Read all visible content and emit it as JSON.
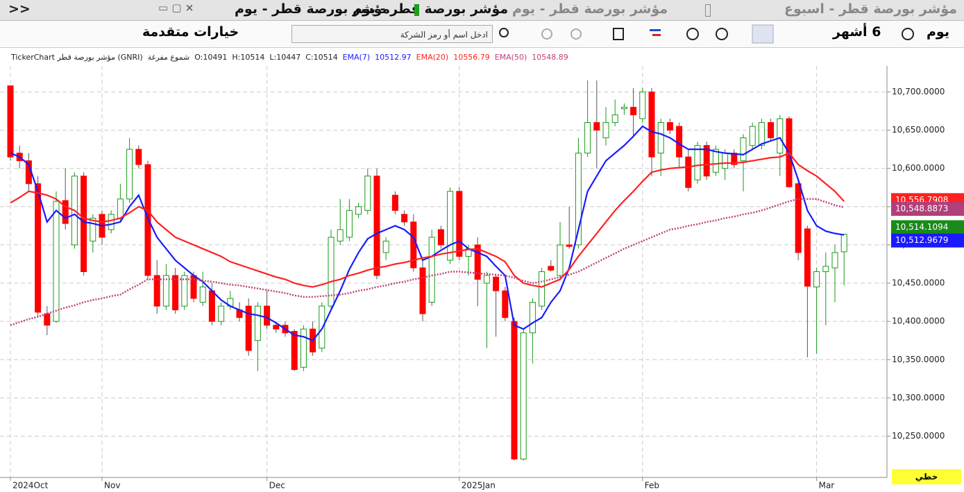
{
  "tabs": {
    "back": "<<",
    "items": [
      "مؤشر بورصة قطر - يوم",
      "مؤشر بورصة قطر - يوم",
      "مؤشر بورصة قطر - يوم",
      "مؤشر بورصة قطر - اسبوع"
    ]
  },
  "toolbar": {
    "advanced": "خيارات متقدمة",
    "search_placeholder": "ادخل اسم أو رمز الشركة",
    "period": "6 أشهر",
    "interval": "يوم"
  },
  "info": {
    "source": "TickerChart مؤشر بورصة قطر (GNRI)",
    "style": "شموع مفرغة",
    "o": "O:10491",
    "h": "H:10514",
    "l": "L:10447",
    "c": "C:10514",
    "ema_values": [
      "10512.97",
      "10556.79",
      "10548.89"
    ]
  },
  "footer": {
    "mode": "خطي"
  },
  "chart_data": {
    "type": "candlestick",
    "categories": [
      "2024Oct",
      null,
      null,
      null,
      null,
      null,
      null,
      null,
      null,
      null,
      "Nov",
      null,
      null,
      null,
      null,
      null,
      null,
      null,
      null,
      null,
      null,
      null,
      null,
      null,
      null,
      null,
      null,
      null,
      "Dec",
      null,
      null,
      null,
      null,
      null,
      null,
      null,
      null,
      null,
      null,
      null,
      null,
      null,
      null,
      null,
      null,
      null,
      null,
      null,
      null,
      "2025Jan",
      null,
      null,
      null,
      null,
      null,
      null,
      null,
      null,
      null,
      null,
      null,
      null,
      null,
      null,
      null,
      null,
      null,
      null,
      null,
      "Feb",
      null,
      null,
      null,
      null,
      null,
      null,
      null,
      null,
      null,
      null,
      null,
      null,
      null,
      null,
      null,
      null,
      null,
      null,
      "Mar",
      null,
      null,
      null
    ],
    "open": [
      10708,
      10620,
      10610,
      10580,
      10410,
      10400,
      10558,
      10500,
      10590,
      10505,
      10540,
      10520,
      10535,
      10560,
      10625,
      10605,
      10460,
      10420,
      10460,
      10420,
      10460,
      10425,
      10440,
      10400,
      10420,
      10415,
      10420,
      10375,
      10420,
      10395,
      10395,
      10387,
      10340,
      10390,
      10365,
      10420,
      10505,
      10510,
      10540,
      10545,
      10590,
      10490,
      10565,
      10540,
      10530,
      10470,
      10425,
      10520,
      10480,
      10570,
      10485,
      10500,
      10450,
      10458,
      10440,
      10400,
      10220,
      10385,
      10420,
      10472,
      10460,
      10500,
      10500,
      10620,
      10660,
      10640,
      10660,
      10678,
      10680,
      10665,
      10700,
      10620,
      10660,
      10655,
      10615,
      10585,
      10630,
      10595,
      10600,
      10620,
      10610,
      10630,
      10630,
      10660,
      10620,
      10665,
      10580,
      10521,
      10445,
      10465,
      10470,
      10491
    ],
    "high": [
      10708,
      10630,
      10620,
      10590,
      10420,
      10570,
      10600,
      10595,
      10595,
      10540,
      10545,
      10545,
      10580,
      10640,
      10630,
      10610,
      10480,
      10475,
      10470,
      10465,
      10465,
      10465,
      10450,
      10425,
      10440,
      10425,
      10430,
      10425,
      10440,
      10400,
      10400,
      10390,
      10395,
      10400,
      10425,
      10520,
      10560,
      10560,
      10555,
      10600,
      10600,
      10510,
      10570,
      10545,
      10540,
      10480,
      10520,
      10525,
      10575,
      10575,
      10500,
      10510,
      10465,
      10462,
      10445,
      10405,
      10390,
      10430,
      10470,
      10480,
      10530,
      10550,
      10640,
      10715,
      10715,
      10680,
      10690,
      10685,
      10705,
      10705,
      10705,
      10665,
      10665,
      10660,
      10625,
      10635,
      10635,
      10630,
      10625,
      10625,
      10645,
      10660,
      10665,
      10665,
      10670,
      10668,
      10585,
      10525,
      10470,
      10490,
      10500,
      10514
    ],
    "low": [
      10610,
      10600,
      10570,
      10405,
      10382,
      10398,
      10520,
      10495,
      10460,
      10490,
      10500,
      10515,
      10530,
      10555,
      10600,
      10455,
      10410,
      10415,
      10410,
      10415,
      10425,
      10420,
      10395,
      10395,
      10415,
      10400,
      10355,
      10335,
      10390,
      10385,
      10380,
      10335,
      10335,
      10355,
      10360,
      10415,
      10500,
      10505,
      10535,
      10540,
      10455,
      10480,
      10540,
      10525,
      10465,
      10400,
      10420,
      10495,
      10475,
      10480,
      10460,
      10420,
      10365,
      10380,
      10400,
      10218,
      10218,
      10345,
      10415,
      10465,
      10455,
      10495,
      10495,
      10615,
      10600,
      10630,
      10655,
      10670,
      10640,
      10660,
      10590,
      10590,
      10645,
      10600,
      10570,
      10580,
      10585,
      10590,
      10585,
      10600,
      10570,
      10625,
      10625,
      10635,
      10590,
      10575,
      10480,
      10353,
      10358,
      10395,
      10425,
      10447
    ],
    "close": [
      10615,
      10610,
      10580,
      10412,
      10395,
      10557,
      10528,
      10590,
      10465,
      10535,
      10510,
      10540,
      10560,
      10625,
      10605,
      10460,
      10420,
      10460,
      10415,
      10460,
      10430,
      10445,
      10400,
      10420,
      10430,
      10405,
      10362,
      10420,
      10395,
      10390,
      10385,
      10337,
      10390,
      10360,
      10420,
      10510,
      10520,
      10545,
      10550,
      10590,
      10460,
      10505,
      10545,
      10530,
      10470,
      10410,
      10510,
      10500,
      10570,
      10485,
      10495,
      10455,
      10460,
      10440,
      10405,
      10220,
      10385,
      10425,
      10465,
      10467,
      10500,
      10498,
      10620,
      10660,
      10650,
      10660,
      10670,
      10680,
      10670,
      10700,
      10615,
      10660,
      10650,
      10615,
      10575,
      10630,
      10590,
      10625,
      10620,
      10605,
      10640,
      10655,
      10660,
      10640,
      10665,
      10576,
      10490,
      10446,
      10465,
      10472,
      10490,
      10514
    ],
    "up_color": "#1a9a1a",
    "down_color": "#ff0000",
    "series": [
      {
        "name": "EMA(7)",
        "color": "#1a1aff",
        "values": [
          10620,
          10615,
          10605,
          10570,
          10530,
          10545,
          10535,
          10540,
          10530,
          10528,
          10525,
          10527,
          10530,
          10550,
          10565,
          10535,
          10510,
          10495,
          10480,
          10470,
          10460,
          10452,
          10440,
          10428,
          10420,
          10415,
          10410,
          10408,
          10405,
          10398,
          10390,
          10382,
          10380,
          10375,
          10390,
          10415,
          10440,
          10468,
          10490,
          10508,
          10515,
          10520,
          10525,
          10520,
          10510,
          10480,
          10485,
          10493,
          10500,
          10505,
          10495,
          10490,
          10485,
          10472,
          10460,
          10395,
          10390,
          10398,
          10405,
          10425,
          10440,
          10470,
          10520,
          10570,
          10590,
          10610,
          10620,
          10630,
          10642,
          10655,
          10648,
          10645,
          10640,
          10632,
          10625,
          10625,
          10625,
          10622,
          10620,
          10619,
          10618,
          10625,
          10632,
          10636,
          10640,
          10620,
          10585,
          10545,
          10525,
          10518,
          10515,
          10513
        ]
      },
      {
        "name": "EMA(20)",
        "color": "#ff2020",
        "values": [
          10555,
          10562,
          10570,
          10568,
          10565,
          10560,
          10550,
          10545,
          10535,
          10532,
          10530,
          10532,
          10535,
          10542,
          10550,
          10545,
          10530,
          10520,
          10510,
          10505,
          10500,
          10495,
          10490,
          10485,
          10478,
          10474,
          10470,
          10466,
          10462,
          10458,
          10455,
          10450,
          10447,
          10445,
          10448,
          10452,
          10455,
          10460,
          10463,
          10467,
          10470,
          10472,
          10475,
          10477,
          10480,
          10483,
          10485,
          10488,
          10490,
          10492,
          10494,
          10495,
          10490,
          10485,
          10478,
          10460,
          10450,
          10447,
          10445,
          10450,
          10455,
          10468,
          10485,
          10500,
          10515,
          10530,
          10545,
          10558,
          10570,
          10583,
          10595,
          10598,
          10600,
          10601,
          10602,
          10604,
          10605,
          10606,
          10607,
          10607,
          10608,
          10610,
          10612,
          10614,
          10615,
          10620,
          10605,
          10597,
          10590,
          10580,
          10570,
          10557
        ]
      },
      {
        "name": "EMA(50)",
        "color": "#c0407a",
        "dotted": true,
        "values": [
          10395,
          10399,
          10403,
          10406,
          10410,
          10414,
          10418,
          10421,
          10425,
          10428,
          10430,
          10433,
          10435,
          10442,
          10448,
          10455,
          10455,
          10455,
          10455,
          10455,
          10455,
          10453,
          10452,
          10450,
          10448,
          10447,
          10445,
          10443,
          10441,
          10439,
          10437,
          10434,
          10432,
          10432,
          10433,
          10434,
          10435,
          10437,
          10440,
          10442,
          10445,
          10447,
          10450,
          10452,
          10455,
          10457,
          10460,
          10462,
          10465,
          10465,
          10464,
          10463,
          10462,
          10461,
          10460,
          10457,
          10453,
          10450,
          10452,
          10455,
          10458,
          10461,
          10465,
          10471,
          10477,
          10483,
          10489,
          10495,
          10500,
          10505,
          10510,
          10515,
          10520,
          10522,
          10525,
          10527,
          10530,
          10532,
          10535,
          10537,
          10540,
          10542,
          10545,
          10549,
          10553,
          10557,
          10560,
          10560,
          10560,
          10556,
          10552,
          10549
        ]
      }
    ],
    "ylim": [
      10196,
      10734
    ],
    "yticks": [
      {
        "value": 10250,
        "label": "10,250.0000"
      },
      {
        "value": 10300,
        "label": "10,300.0000"
      },
      {
        "value": 10350,
        "label": "10,350.0000"
      },
      {
        "value": 10400,
        "label": "10,400.0000"
      },
      {
        "value": 10450,
        "label": "10,450.0000"
      },
      {
        "value": 10500,
        "label": "10,500.0000"
      },
      {
        "value": 10550,
        "label": "10,550.0000"
      },
      {
        "value": 10600,
        "label": "10,600.0000"
      },
      {
        "value": 10650,
        "label": "10,650.0000"
      },
      {
        "value": 10700,
        "label": "10,700.0000"
      }
    ],
    "price_tags": [
      {
        "value": 10556.7908,
        "label": "10,556.7908",
        "color": "#ff2020"
      },
      {
        "value": 10548.8873,
        "label": "10,548.8873",
        "color": "#b0407a"
      },
      {
        "value": 10514.1094,
        "label": "10,514.1094",
        "color": "#1a8a1a"
      },
      {
        "value": 10512.9679,
        "label": "10,512.9679",
        "color": "#1a1aff"
      }
    ],
    "grid": true
  }
}
